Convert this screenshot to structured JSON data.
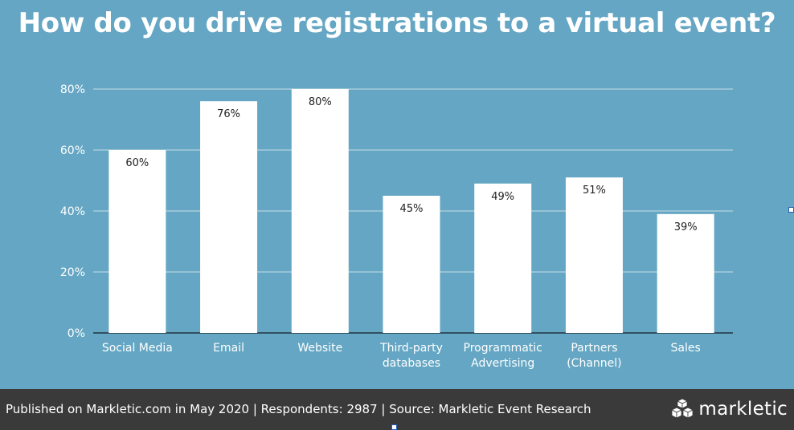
{
  "title": "How do you drive registrations to a virtual event?",
  "footer": {
    "text": "Published on Markletic.com in May 2020 | Respondents: 2987 | Source: Markletic Event Research",
    "logo_text": "markletic",
    "logo_icon": "cubes-icon"
  },
  "colors": {
    "background": "#64a6c3",
    "bar": "#ffffff",
    "footer": "#3a3a3a"
  },
  "chart_data": {
    "type": "bar",
    "title": "How do you drive registrations to a virtual event?",
    "categories": [
      [
        "Social Media"
      ],
      [
        "Email"
      ],
      [
        "Website"
      ],
      [
        "Third-party",
        "databases"
      ],
      [
        "Programmatic",
        "Advertising"
      ],
      [
        "Partners",
        "(Channel)"
      ],
      [
        "Sales"
      ]
    ],
    "values": [
      60,
      76,
      80,
      45,
      49,
      51,
      39
    ],
    "value_labels": [
      "60%",
      "76%",
      "80%",
      "45%",
      "49%",
      "51%",
      "39%"
    ],
    "ylim": [
      0,
      80
    ],
    "yticks": [
      0,
      20,
      40,
      60,
      80
    ],
    "ytick_labels": [
      "0%",
      "20%",
      "40%",
      "60%",
      "80%"
    ],
    "grid": true,
    "legend": "none"
  }
}
